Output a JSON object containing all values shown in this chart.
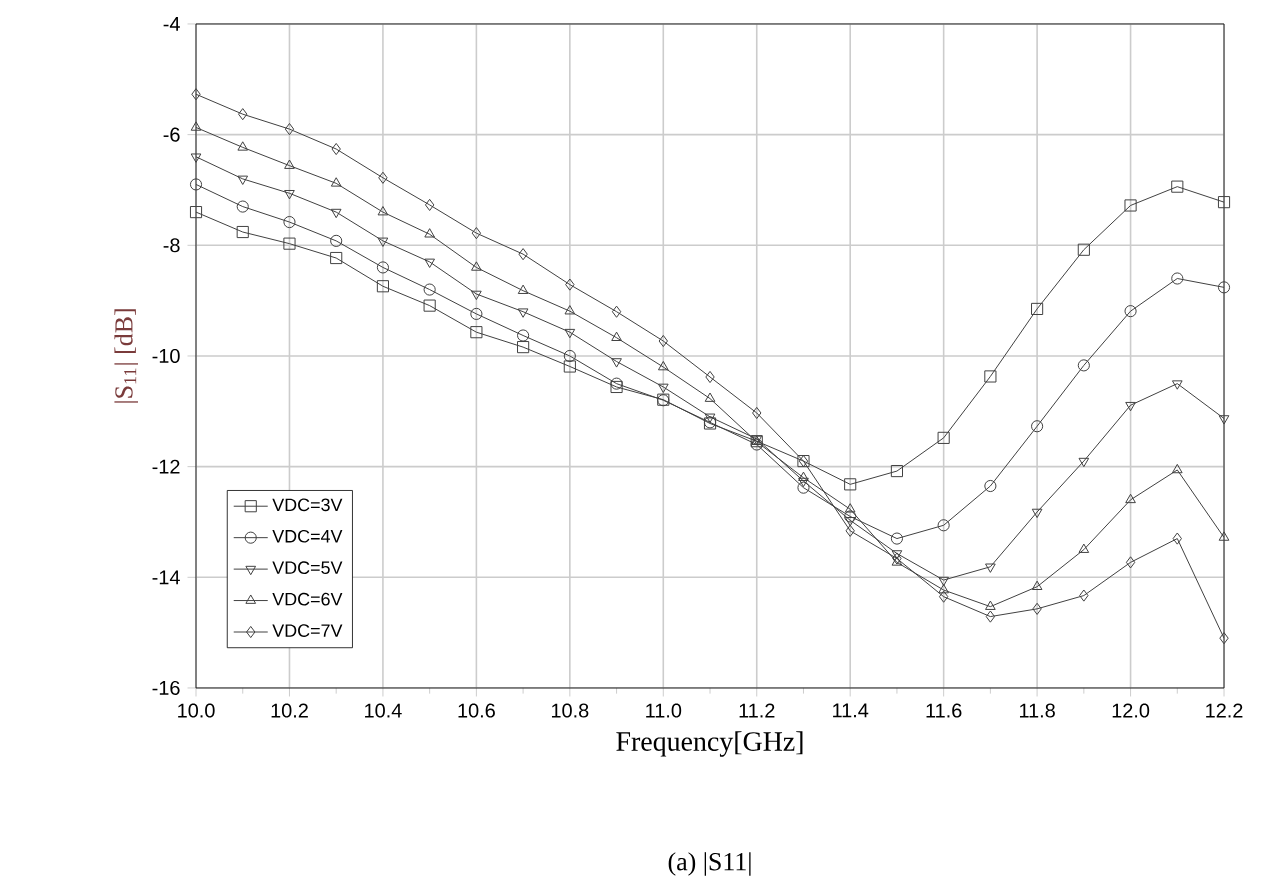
{
  "chart_data": {
    "type": "line",
    "xlabel": "Frequency[GHz]",
    "ylabel": "|S$_{11}$| [dB]",
    "annotations": [
      "(a) |S11|"
    ],
    "x": [
      10.0,
      10.1,
      10.2,
      10.3,
      10.4,
      10.5,
      10.6,
      10.7,
      10.8,
      10.9,
      11.0,
      11.1,
      11.2,
      11.3,
      11.4,
      11.5,
      11.6,
      11.7,
      11.8,
      11.9,
      12.0,
      12.1,
      12.2
    ],
    "series": [
      {
        "name": "VDC=3V",
        "color": "#404040",
        "marker": "square",
        "values": [
          -7.4,
          -7.76,
          -7.97,
          -8.23,
          -8.74,
          -9.09,
          -9.57,
          -9.84,
          -10.19,
          -10.56,
          -10.79,
          -11.22,
          -11.54,
          -11.9,
          -12.32,
          -12.08,
          -11.48,
          -10.37,
          -9.15,
          -8.08,
          -7.28,
          -6.94,
          -7.22
        ]
      },
      {
        "name": "VDC=4V",
        "color": "#404040",
        "marker": "circle",
        "values": [
          -6.9,
          -7.3,
          -7.58,
          -7.92,
          -8.4,
          -8.8,
          -9.24,
          -9.63,
          -10.0,
          -10.5,
          -10.8,
          -11.2,
          -11.6,
          -12.38,
          -12.9,
          -13.3,
          -13.06,
          -12.35,
          -11.27,
          -10.17,
          -9.19,
          -8.6,
          -8.76
        ]
      },
      {
        "name": "VDC=5V",
        "color": "#404040",
        "marker": "triangle-down",
        "values": [
          -6.4,
          -6.8,
          -7.06,
          -7.4,
          -7.92,
          -8.3,
          -8.88,
          -9.2,
          -9.57,
          -10.1,
          -10.56,
          -11.1,
          -11.5,
          -12.26,
          -12.97,
          -13.57,
          -14.05,
          -13.81,
          -12.82,
          -11.9,
          -10.89,
          -10.5,
          -11.13
        ]
      },
      {
        "name": "VDC=6V",
        "color": "#404040",
        "marker": "triangle",
        "values": [
          -5.87,
          -6.23,
          -6.56,
          -6.88,
          -7.4,
          -7.8,
          -8.4,
          -8.82,
          -9.19,
          -9.67,
          -10.2,
          -10.77,
          -11.55,
          -12.2,
          -12.77,
          -13.73,
          -14.23,
          -14.53,
          -14.17,
          -13.5,
          -12.6,
          -12.06,
          -13.28
        ]
      },
      {
        "name": "VDC=7V",
        "color": "#404040",
        "marker": "diamond",
        "values": [
          -5.27,
          -5.63,
          -5.9,
          -6.26,
          -6.78,
          -7.27,
          -7.78,
          -8.16,
          -8.71,
          -9.2,
          -9.73,
          -10.38,
          -11.03,
          -11.9,
          -13.16,
          -13.66,
          -14.35,
          -14.71,
          -14.57,
          -14.33,
          -13.73,
          -13.3,
          -15.1
        ]
      }
    ],
    "xlim": [
      10.0,
      12.2
    ],
    "xticks": [
      {
        "value": 10.0,
        "label": "10.0"
      },
      {
        "value": 10.2,
        "label": "10.2"
      },
      {
        "value": 10.4,
        "label": "10.4"
      },
      {
        "value": 10.6,
        "label": "10.6"
      },
      {
        "value": 10.8,
        "label": "10.8"
      },
      {
        "value": 11.0,
        "label": "11.0"
      },
      {
        "value": 11.2,
        "label": "11.2"
      },
      {
        "value": 11.4,
        "label": "11.4"
      },
      {
        "value": 11.6,
        "label": "11.6"
      },
      {
        "value": 11.8,
        "label": "11.8"
      },
      {
        "value": 12.0,
        "label": "12.0"
      },
      {
        "value": 12.2,
        "label": "12.2"
      }
    ],
    "ylim": [
      -16,
      -4
    ],
    "yticks": [
      -16,
      -14,
      -12,
      -10,
      -8,
      -6,
      -4
    ],
    "grid": true,
    "legend": "bottom left",
    "line_style": "solid"
  }
}
